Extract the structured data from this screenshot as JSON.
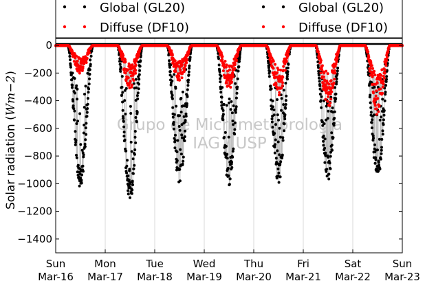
{
  "chart_data": {
    "type": "scatter",
    "title": "",
    "xlabel": "",
    "ylabel": "Solar radiation (",
    "ylabel_unit": "Wm−2",
    "ylabel_close": ")",
    "watermark": [
      "Grupo de Micrometeorologia",
      "IAG / USP"
    ],
    "ylim": [
      -1500,
      50
    ],
    "yticks": [
      0,
      -200,
      -400,
      -600,
      -800,
      -1000,
      -1200,
      -1400
    ],
    "xlim_days": [
      0,
      7
    ],
    "xticks": [
      {
        "day": "Sun",
        "date": "Mar-16"
      },
      {
        "day": "Mon",
        "date": "Mar-17"
      },
      {
        "day": "Tue",
        "date": "Mar-18"
      },
      {
        "day": "Wed",
        "date": "Mar-19"
      },
      {
        "day": "Thu",
        "date": "Mar-20"
      },
      {
        "day": "Fri",
        "date": "Mar-21"
      },
      {
        "day": "Sat",
        "date": "Mar-22"
      },
      {
        "day": "Sun",
        "date": "Mar-23"
      }
    ],
    "grid": "vertical",
    "legend_placement": "top",
    "legend": [
      {
        "label": "Global (GL20)",
        "color": "#000000"
      },
      {
        "label": "Diffuse (DF10)",
        "color": "#ff0000"
      },
      {
        "label": "Global (GL20)",
        "color": "#000000"
      },
      {
        "label": "Diffuse (DF10)",
        "color": "#ff0000"
      }
    ],
    "series": [
      {
        "name": "Global (GL20)",
        "color": "#000000",
        "daily_min": [
          -1010,
          -1110,
          -1000,
          -990,
          -980,
          -960,
          -950
        ]
      },
      {
        "name": "Diffuse (DF10)",
        "color": "#ff0000",
        "daily_min": [
          -200,
          -300,
          -250,
          -300,
          -350,
          -430,
          -480
        ]
      }
    ]
  }
}
